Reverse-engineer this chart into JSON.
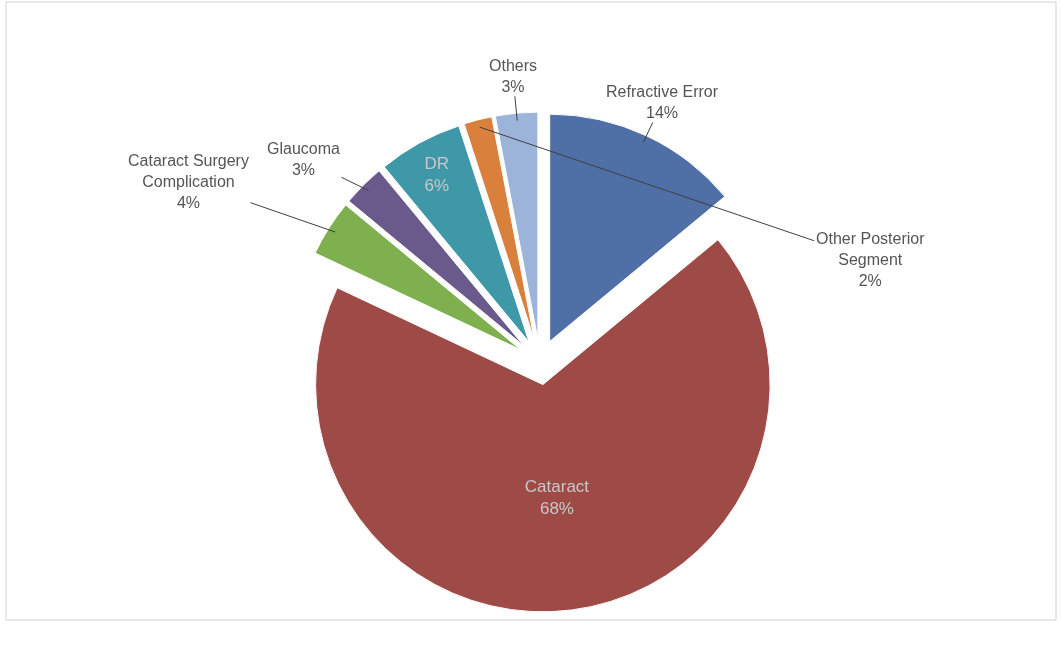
{
  "chart_data": {
    "type": "pie",
    "categories": [
      "Refractive Error",
      "Cataract",
      "Cataract Surgery Complication",
      "Glaucoma",
      "DR",
      "Other Posterior Segment",
      "Others"
    ],
    "values": [
      14,
      68,
      4,
      3,
      6,
      2,
      3
    ],
    "value_labels": [
      "14%",
      "68%",
      "4%",
      "3%",
      "6%",
      "2%",
      "3%"
    ],
    "colors": [
      "#4f6fa6",
      "#9e4a47",
      "#7fb04f",
      "#6a5a8c",
      "#3f98a8",
      "#d9803c",
      "#9cb4da"
    ]
  }
}
